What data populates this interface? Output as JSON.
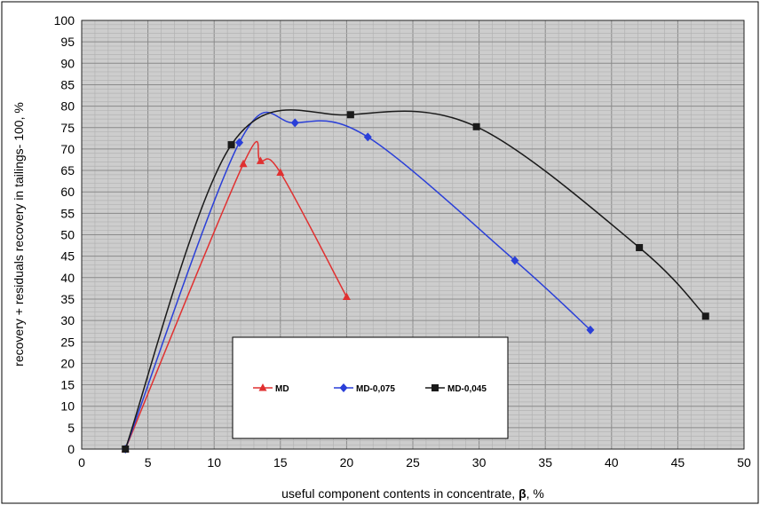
{
  "chart_data": {
    "type": "line",
    "title": "",
    "xlabel": "useful component contents in concentrate, ",
    "xlabel_symbol": "β",
    "xlabel_unit": ", %",
    "ylabel": "recovery + residuals recovery in tailings- 100, %",
    "xlim": [
      0,
      50
    ],
    "ylim": [
      0,
      100
    ],
    "xticks": [
      "0",
      "5",
      "10",
      "15",
      "20",
      "25",
      "30",
      "35",
      "40",
      "45",
      "50"
    ],
    "yticks": [
      "0",
      "5",
      "10",
      "15",
      "20",
      "25",
      "30",
      "35",
      "40",
      "45",
      "50",
      "55",
      "60",
      "65",
      "70",
      "75",
      "80",
      "85",
      "90",
      "95",
      "100"
    ],
    "grid": true,
    "smooth": true,
    "legend_position": "bottom-center",
    "series": [
      {
        "name": "MD",
        "color": "#e03030",
        "marker": "triangle",
        "x": [
          3.3,
          12.2,
          13.5,
          15.0,
          20.0
        ],
        "y": [
          0,
          66.5,
          67.2,
          64.5,
          35.5
        ]
      },
      {
        "name": "MD-0,075",
        "color": "#2a3fd8",
        "marker": "diamond",
        "x": [
          3.3,
          11.9,
          16.1,
          21.6,
          32.7,
          38.4
        ],
        "y": [
          0,
          71.5,
          76.1,
          72.8,
          44.0,
          27.8
        ]
      },
      {
        "name": "MD-0,045",
        "color": "#1a1a1a",
        "marker": "square",
        "x": [
          3.3,
          11.3,
          20.3,
          29.8,
          42.1,
          47.1
        ],
        "y": [
          0,
          71.0,
          78.0,
          75.2,
          47.0,
          31.0
        ]
      }
    ]
  }
}
